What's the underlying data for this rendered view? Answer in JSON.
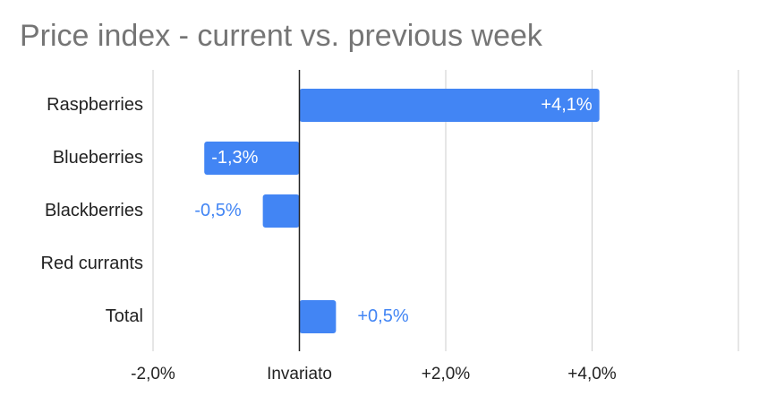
{
  "chart_data": {
    "type": "bar",
    "orientation": "horizontal",
    "title": "Price index - current vs. previous week",
    "categories": [
      "Raspberries",
      "Blueberries",
      "Blackberries",
      "Red currants",
      "Total"
    ],
    "values": [
      4.1,
      -1.3,
      -0.5,
      0,
      0.5
    ],
    "value_labels": [
      "+4,1%",
      "-1,3%",
      "-0,5%",
      null,
      "+0,5%"
    ],
    "color": "#4285f4",
    "xlim": [
      -2,
      6
    ],
    "xticks": [
      {
        "value": -2,
        "label": "-2,0%"
      },
      {
        "value": 0,
        "label": "Invariato"
      },
      {
        "value": 2,
        "label": "+2,0%"
      },
      {
        "value": 4,
        "label": "+4,0%"
      }
    ],
    "grid": true
  }
}
